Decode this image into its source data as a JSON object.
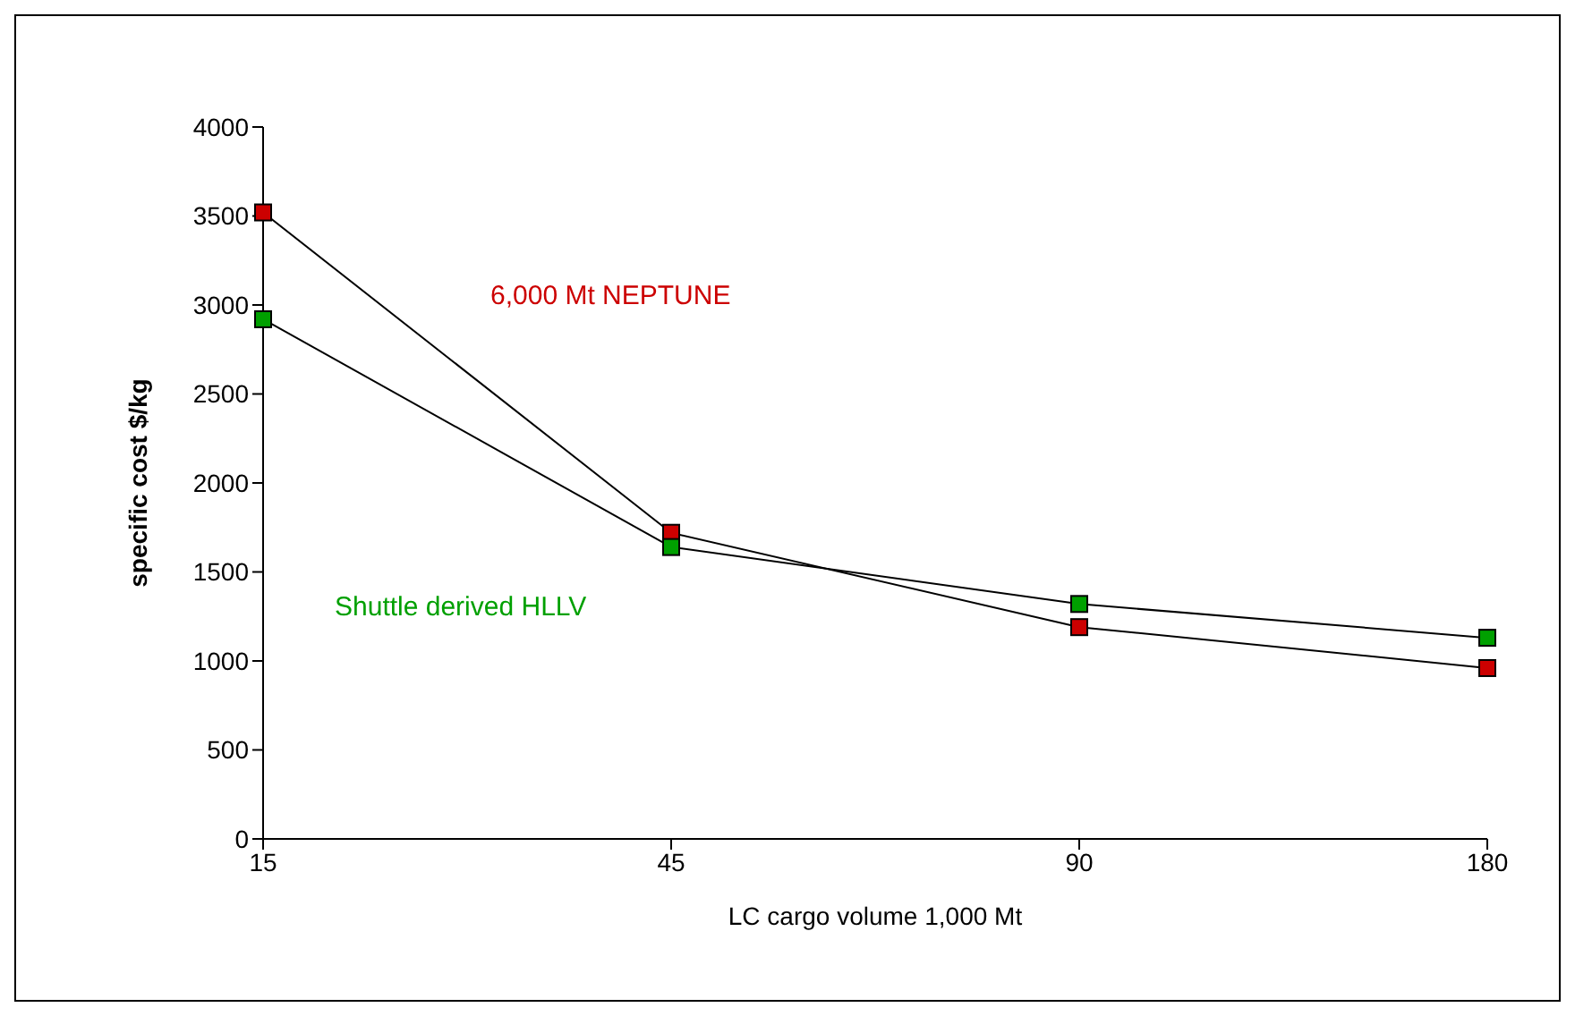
{
  "chart_data": {
    "type": "line",
    "xlabel": "LC cargo volume 1,000 Mt",
    "ylabel": "specific cost  $/kg",
    "categories": [
      "15",
      "45",
      "90",
      "180"
    ],
    "series": [
      {
        "name": "6,000 Mt NEPTUNE",
        "color": "#cc0000",
        "values": [
          3520,
          1720,
          1190,
          960
        ]
      },
      {
        "name": "Shuttle derived HLLV",
        "color": "#00a000",
        "values": [
          2920,
          1640,
          1320,
          1130
        ]
      }
    ],
    "ylim": [
      0,
      4000
    ],
    "yticks": [
      0,
      500,
      1000,
      1500,
      2000,
      2500,
      3000,
      3500,
      4000
    ],
    "grid": false,
    "legend": false,
    "marker": "square",
    "line_style": "solid"
  }
}
